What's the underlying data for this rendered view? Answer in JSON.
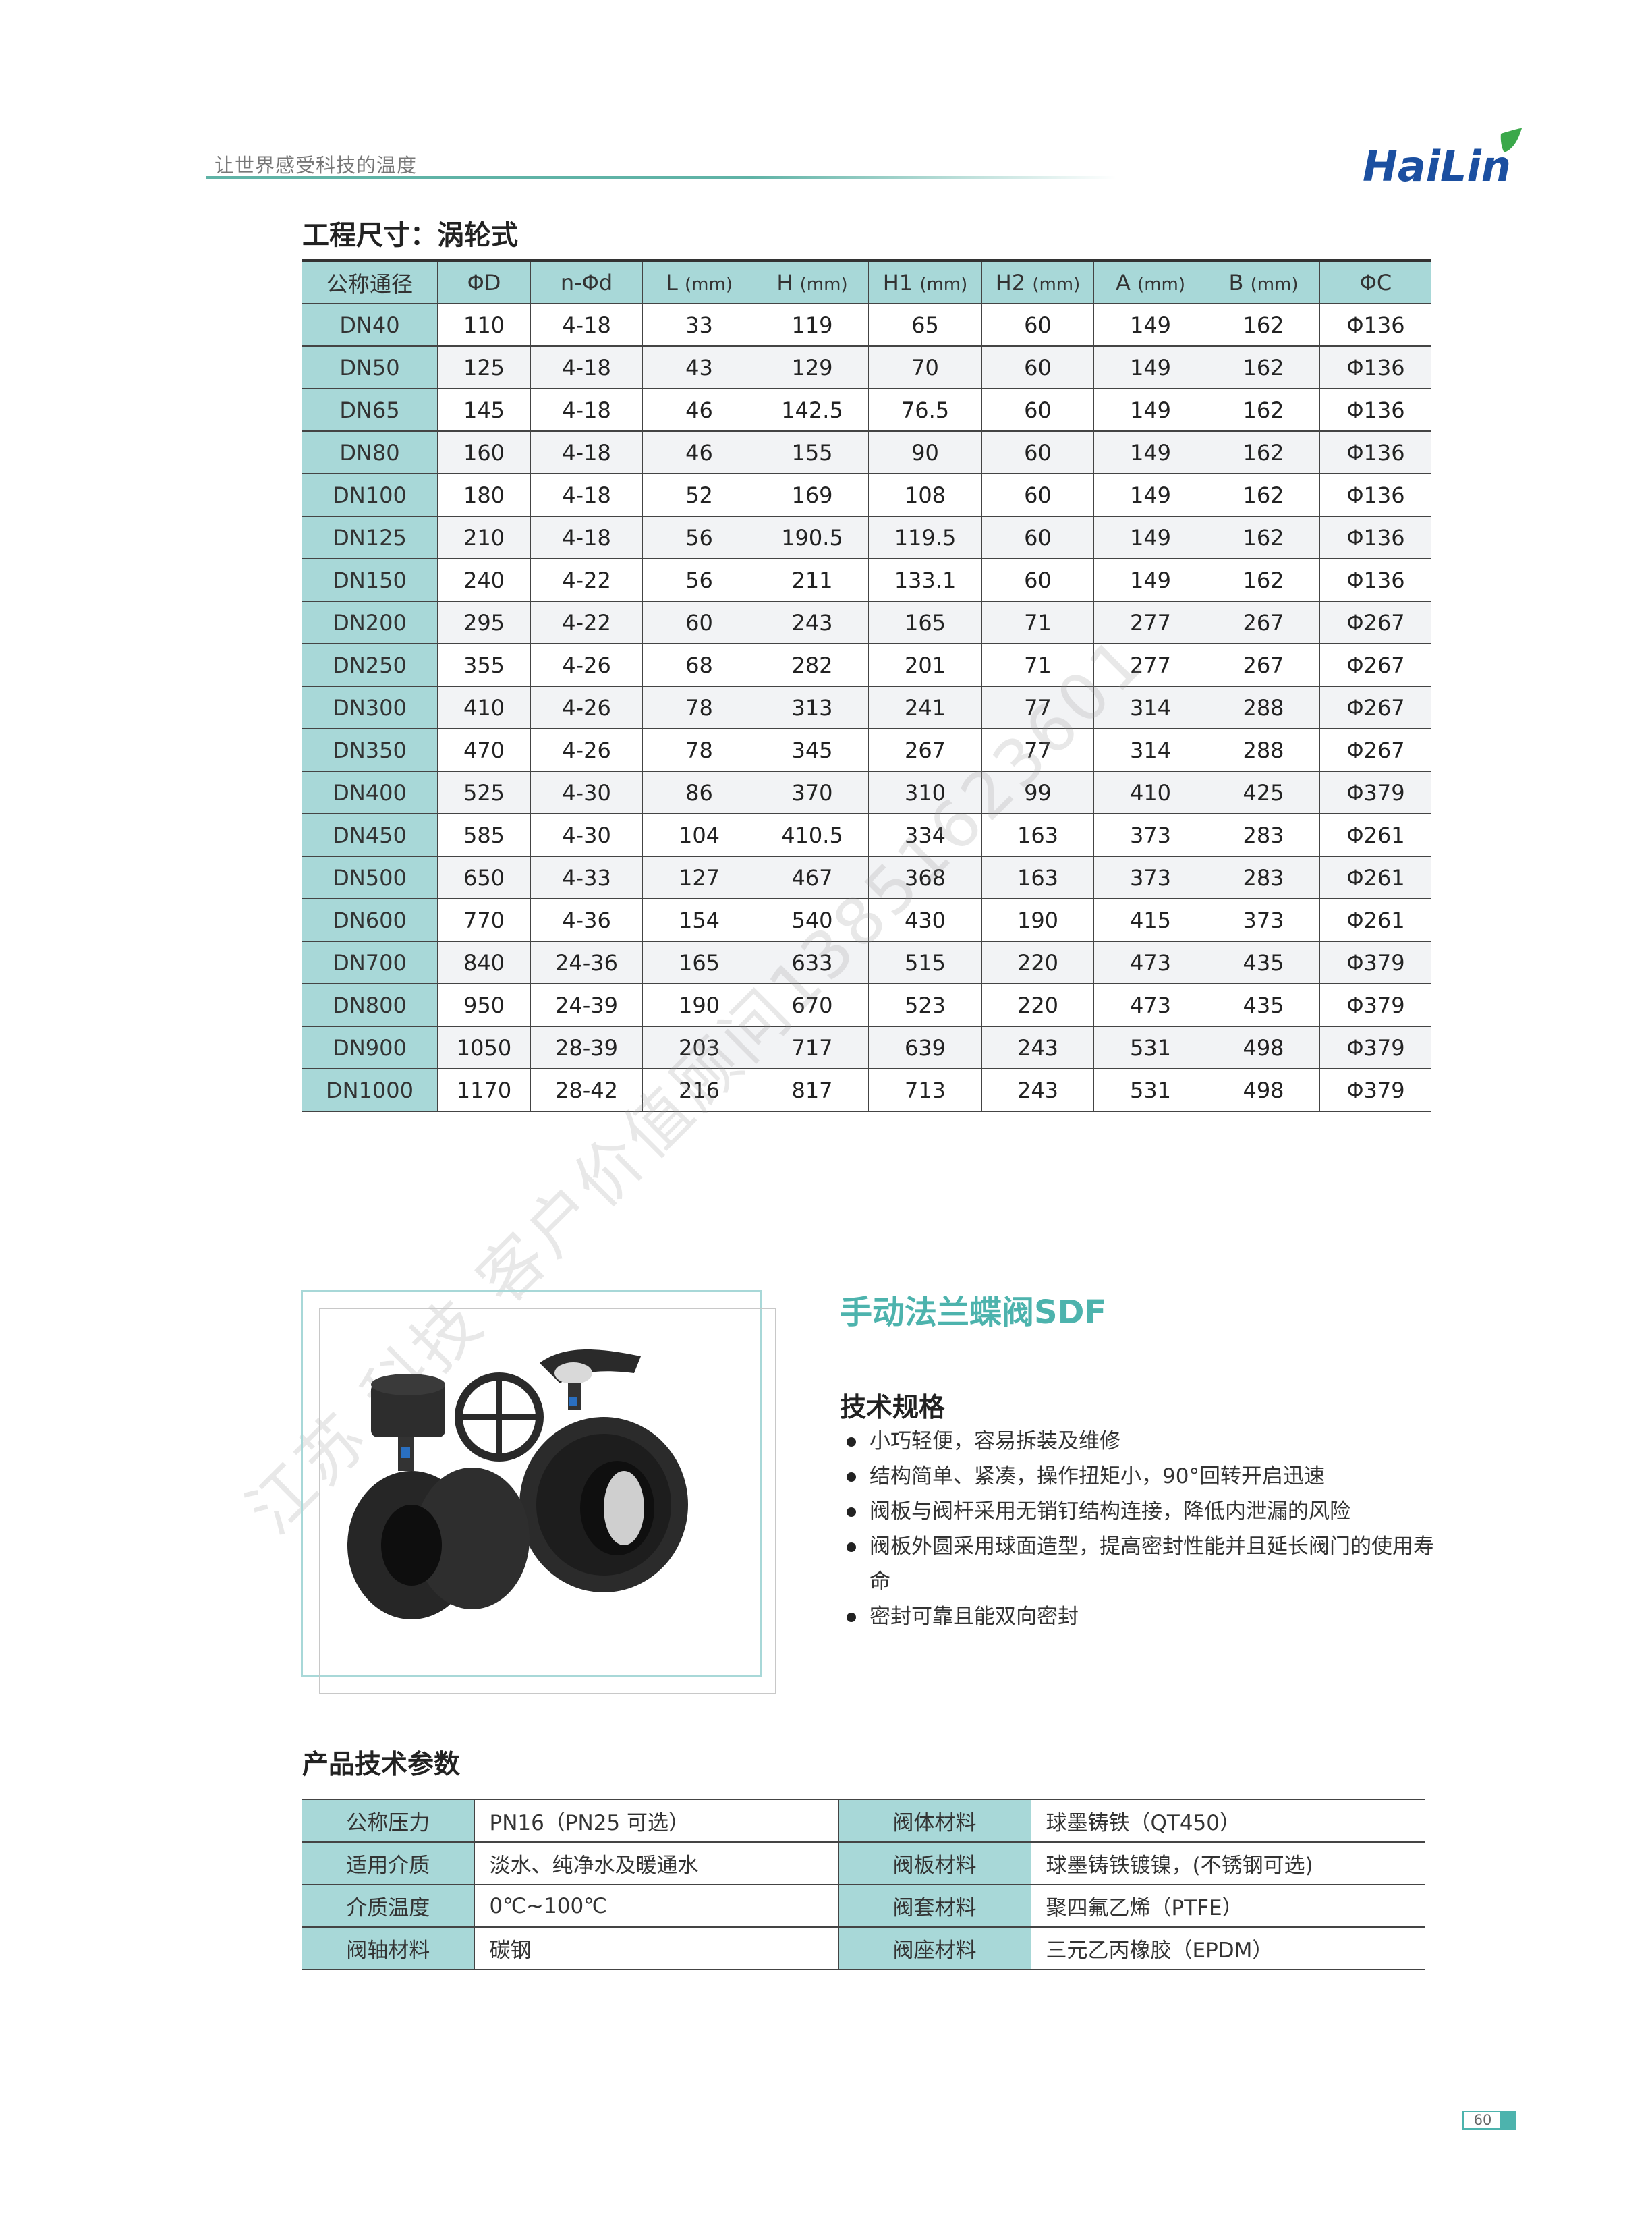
{
  "header": {
    "slogan": "让世界感受科技的温度",
    "logo_text": "HaiLin",
    "brand_color": "#1b4fa0",
    "accent_color": "#4db3ad"
  },
  "dimensions": {
    "title": "工程尺寸：涡轮式",
    "columns": [
      {
        "label": "公称通径",
        "unit": ""
      },
      {
        "label": "ΦD",
        "unit": ""
      },
      {
        "label": "n-Φd",
        "unit": ""
      },
      {
        "label": "L",
        "unit": "(mm)"
      },
      {
        "label": "H",
        "unit": "(mm)"
      },
      {
        "label": "H1",
        "unit": "(mm)"
      },
      {
        "label": "H2",
        "unit": "(mm)"
      },
      {
        "label": "A",
        "unit": "(mm)"
      },
      {
        "label": "B",
        "unit": "(mm)"
      },
      {
        "label": "ΦC",
        "unit": ""
      }
    ],
    "rows": [
      [
        "DN40",
        "110",
        "4-18",
        "33",
        "119",
        "65",
        "60",
        "149",
        "162",
        "Φ136"
      ],
      [
        "DN50",
        "125",
        "4-18",
        "43",
        "129",
        "70",
        "60",
        "149",
        "162",
        "Φ136"
      ],
      [
        "DN65",
        "145",
        "4-18",
        "46",
        "142.5",
        "76.5",
        "60",
        "149",
        "162",
        "Φ136"
      ],
      [
        "DN80",
        "160",
        "4-18",
        "46",
        "155",
        "90",
        "60",
        "149",
        "162",
        "Φ136"
      ],
      [
        "DN100",
        "180",
        "4-18",
        "52",
        "169",
        "108",
        "60",
        "149",
        "162",
        "Φ136"
      ],
      [
        "DN125",
        "210",
        "4-18",
        "56",
        "190.5",
        "119.5",
        "60",
        "149",
        "162",
        "Φ136"
      ],
      [
        "DN150",
        "240",
        "4-22",
        "56",
        "211",
        "133.1",
        "60",
        "149",
        "162",
        "Φ136"
      ],
      [
        "DN200",
        "295",
        "4-22",
        "60",
        "243",
        "165",
        "71",
        "277",
        "267",
        "Φ267"
      ],
      [
        "DN250",
        "355",
        "4-26",
        "68",
        "282",
        "201",
        "71",
        "277",
        "267",
        "Φ267"
      ],
      [
        "DN300",
        "410",
        "4-26",
        "78",
        "313",
        "241",
        "77",
        "314",
        "288",
        "Φ267"
      ],
      [
        "DN350",
        "470",
        "4-26",
        "78",
        "345",
        "267",
        "77",
        "314",
        "288",
        "Φ267"
      ],
      [
        "DN400",
        "525",
        "4-30",
        "86",
        "370",
        "310",
        "99",
        "410",
        "425",
        "Φ379"
      ],
      [
        "DN450",
        "585",
        "4-30",
        "104",
        "410.5",
        "334",
        "163",
        "373",
        "283",
        "Φ261"
      ],
      [
        "DN500",
        "650",
        "4-33",
        "127",
        "467",
        "368",
        "163",
        "373",
        "283",
        "Φ261"
      ],
      [
        "DN600",
        "770",
        "4-36",
        "154",
        "540",
        "430",
        "190",
        "415",
        "373",
        "Φ261"
      ],
      [
        "DN700",
        "840",
        "24-36",
        "165",
        "633",
        "515",
        "220",
        "473",
        "435",
        "Φ379"
      ],
      [
        "DN800",
        "950",
        "24-39",
        "190",
        "670",
        "523",
        "220",
        "473",
        "435",
        "Φ379"
      ],
      [
        "DN900",
        "1050",
        "28-39",
        "203",
        "717",
        "639",
        "243",
        "531",
        "498",
        "Φ379"
      ],
      [
        "DN1000",
        "1170",
        "28-42",
        "216",
        "817",
        "713",
        "243",
        "531",
        "498",
        "Φ379"
      ]
    ]
  },
  "product": {
    "title": "手动法兰蝶阀SDF",
    "spec_title": "技术规格",
    "specs": [
      "小巧轻便，容易拆装及维修",
      "结构简单、紧凑，操作扭矩小，90°回转开启迅速",
      "阀板与阀杆采用无销钉结构连接，降低内泄漏的风险",
      "阀板外圆采用球面造型，提高密封性能并且延长阀门的使用寿命",
      "密封可靠且能双向密封"
    ]
  },
  "params": {
    "title": "产品技术参数",
    "rows": [
      [
        "公称压力",
        "PN16（PN25 可选）",
        "阀体材料",
        "球墨铸铁（QT450）"
      ],
      [
        "适用介质",
        "淡水、纯净水及暖通水",
        "阀板材料",
        "球墨铸铁镀镍，(不锈钢可选)"
      ],
      [
        "介质温度",
        "0℃~100℃",
        "阀套材料",
        "聚四氟乙烯（PTFE）"
      ],
      [
        "阀轴材料",
        "碳钢",
        "阀座材料",
        "三元乙丙橡胶（EPDM）"
      ]
    ]
  },
  "watermark": "江苏 科技 客户价值顾问13851623601",
  "page_number": "60"
}
